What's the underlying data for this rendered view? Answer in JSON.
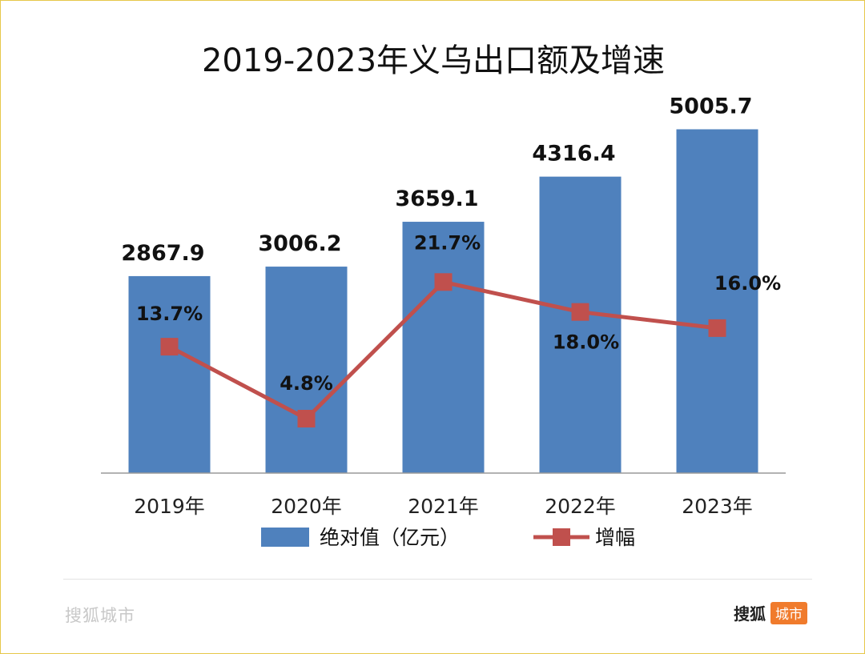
{
  "chart_data": {
    "type": "bar",
    "title": "2019-2023年义乌出口额及增速",
    "categories": [
      "2019年",
      "2020年",
      "2021年",
      "2022年",
      "2023年"
    ],
    "series": [
      {
        "name": "绝对值（亿元）",
        "kind": "bar",
        "color": "#4f81bd",
        "values": [
          2867.9,
          3006.2,
          3659.1,
          4316.4,
          5005.7
        ],
        "labels": [
          "2867.9",
          "3006.2",
          "3659.1",
          "4316.4",
          "5005.7"
        ]
      },
      {
        "name": "增幅",
        "kind": "line",
        "color": "#c0504d",
        "values": [
          13.7,
          4.8,
          21.7,
          18.0,
          16.0
        ],
        "labels": [
          "13.7%",
          "4.8%",
          "21.7%",
          "18.0%",
          "16.0%"
        ]
      }
    ],
    "ylim": [
      0,
      5000
    ],
    "ylim_secondary": [
      0,
      50
    ],
    "xlabel": "",
    "ylabel": "",
    "grid": false,
    "legend": "bottom"
  },
  "watermark": {
    "left_text": "搜狐城市",
    "right_text": "搜狐",
    "right_badge": "城市"
  }
}
